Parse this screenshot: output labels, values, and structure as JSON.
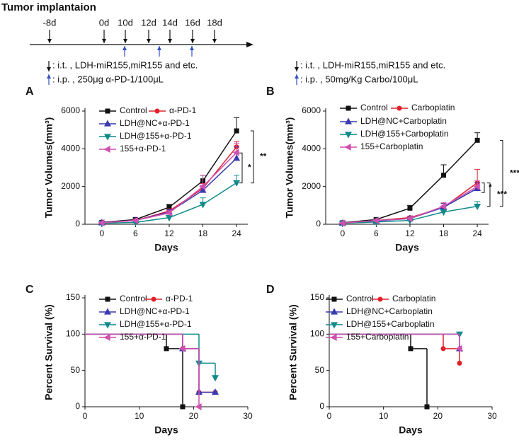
{
  "timeline": {
    "title": "Tumor implantaion",
    "labels": [
      "-8d",
      "0d",
      "10d",
      "12d",
      "14d",
      "16d",
      "18d"
    ],
    "legend_left": [
      ": i.t. , LDH-miR155,miR155 and etc.",
      ": i.p. , 250μg α-PD-1/100μL"
    ],
    "legend_right": [
      ": i.t. , LDH-miR155,miR155 and etc.",
      ": i.p. , 50mg/Kg Carbo/100μL"
    ]
  },
  "chart_data": [
    {
      "type": "line",
      "panel": "A",
      "xlabel": "Days",
      "ylabel": "Tumor Volumes(mm³)",
      "x": [
        0,
        6,
        12,
        18,
        24
      ],
      "xlim": [
        -3,
        26
      ],
      "xticks": [
        0,
        6,
        12,
        18,
        24
      ],
      "ylim": [
        0,
        6000
      ],
      "yticks": [
        0,
        2000,
        4000,
        6000
      ],
      "annotations": [
        "*",
        "**"
      ],
      "series": [
        {
          "name": "Control",
          "color": "#111111",
          "marker": "square",
          "values": [
            100,
            250,
            900,
            2300,
            4950
          ],
          "errors": [
            50,
            80,
            150,
            300,
            700
          ]
        },
        {
          "name": "α-PD-1",
          "color": "#e0202a",
          "marker": "circle",
          "values": [
            80,
            200,
            700,
            1900,
            4100
          ],
          "errors": [
            40,
            60,
            120,
            250,
            300
          ]
        },
        {
          "name": "LDH@NC+α-PD-1",
          "color": "#3a3ab0",
          "marker": "triangle-up",
          "values": [
            80,
            200,
            650,
            1800,
            3500
          ],
          "errors": [
            40,
            60,
            120,
            250,
            600
          ]
        },
        {
          "name": "LDH@155+α-PD-1",
          "color": "#108a8a",
          "marker": "triangle-down",
          "values": [
            50,
            100,
            350,
            1050,
            2200
          ],
          "errors": [
            30,
            40,
            100,
            350,
            400
          ]
        },
        {
          "name": "155+α-PD-1",
          "color": "#d04fb0",
          "marker": "triangle-left",
          "values": [
            80,
            200,
            600,
            2000,
            3800
          ],
          "errors": [
            40,
            60,
            120,
            600,
            500
          ]
        }
      ]
    },
    {
      "type": "line",
      "panel": "B",
      "xlabel": "Days",
      "ylabel": "Tumor Volumes(mm³)",
      "x": [
        0,
        6,
        12,
        18,
        24
      ],
      "xlim": [
        -3,
        26
      ],
      "xticks": [
        0,
        6,
        12,
        18,
        24
      ],
      "ylim": [
        0,
        6000
      ],
      "yticks": [
        0,
        2000,
        4000,
        6000
      ],
      "annotations": [
        "*",
        "***",
        "***"
      ],
      "series": [
        {
          "name": "Control",
          "color": "#111111",
          "marker": "square",
          "values": [
            80,
            250,
            850,
            2600,
            4450
          ],
          "errors": [
            50,
            80,
            150,
            550,
            400
          ]
        },
        {
          "name": "Carboplatin",
          "color": "#e0202a",
          "marker": "circle",
          "values": [
            60,
            200,
            350,
            900,
            2200
          ],
          "errors": [
            30,
            50,
            80,
            200,
            700
          ]
        },
        {
          "name": "LDH@NC+Carboplatin",
          "color": "#3a3ab0",
          "marker": "triangle-up",
          "values": [
            60,
            180,
            300,
            900,
            1900
          ],
          "errors": [
            30,
            50,
            80,
            200,
            300
          ]
        },
        {
          "name": "LDH@155+Carboplatin",
          "color": "#108a8a",
          "marker": "triangle-down",
          "values": [
            50,
            120,
            200,
            650,
            950
          ],
          "errors": [
            30,
            40,
            60,
            100,
            250
          ]
        },
        {
          "name": "155+Carboplatin",
          "color": "#d04fb0",
          "marker": "triangle-left",
          "values": [
            60,
            200,
            300,
            950,
            2000
          ],
          "errors": [
            30,
            50,
            80,
            200,
            300
          ]
        }
      ]
    },
    {
      "type": "step",
      "panel": "C",
      "xlabel": "Days",
      "ylabel": "Percent Survival (%)",
      "xlim": [
        0,
        30
      ],
      "xticks": [
        0,
        10,
        20,
        30
      ],
      "ylim": [
        0,
        150
      ],
      "yticks": [
        0,
        50,
        100,
        150
      ],
      "series": [
        {
          "name": "Control",
          "color": "#111111",
          "marker": "square",
          "x": [
            0,
            15,
            18
          ],
          "values": [
            100,
            80,
            0
          ]
        },
        {
          "name": "α-PD-1",
          "color": "#e0202a",
          "marker": "circle",
          "x": [
            0,
            18,
            21,
            24
          ],
          "values": [
            100,
            80,
            20,
            20
          ]
        },
        {
          "name": "LDH@NC+α-PD-1",
          "color": "#3a3ab0",
          "marker": "triangle-up",
          "x": [
            0,
            18,
            21,
            24
          ],
          "values": [
            100,
            80,
            20,
            20
          ]
        },
        {
          "name": "LDH@155+α-PD-1",
          "color": "#108a8a",
          "marker": "triangle-down",
          "x": [
            0,
            21,
            24
          ],
          "values": [
            100,
            60,
            40
          ]
        },
        {
          "name": "155+α-PD-1",
          "color": "#d04fb0",
          "marker": "triangle-left",
          "x": [
            0,
            18,
            21
          ],
          "values": [
            100,
            80,
            0
          ]
        }
      ]
    },
    {
      "type": "step",
      "panel": "D",
      "xlabel": "Days",
      "ylabel": "Percent Survival (%)",
      "xlim": [
        0,
        30
      ],
      "xticks": [
        0,
        10,
        20,
        30
      ],
      "ylim": [
        0,
        150
      ],
      "yticks": [
        0,
        50,
        100,
        150
      ],
      "series": [
        {
          "name": "Control",
          "color": "#111111",
          "marker": "square",
          "x": [
            0,
            15,
            18
          ],
          "values": [
            100,
            80,
            0
          ]
        },
        {
          "name": "Carboplatin",
          "color": "#e0202a",
          "marker": "circle",
          "x": [
            0,
            21,
            24
          ],
          "values": [
            100,
            80,
            60
          ]
        },
        {
          "name": "LDH@NC+Carboplatin",
          "color": "#3a3ab0",
          "marker": "triangle-up",
          "x": [
            0,
            24
          ],
          "values": [
            100,
            80
          ]
        },
        {
          "name": "LDH@155+Carboplatin",
          "color": "#108a8a",
          "marker": "triangle-down",
          "x": [
            0,
            24
          ],
          "values": [
            100,
            100
          ]
        },
        {
          "name": "155+Carboplatin",
          "color": "#d04fb0",
          "marker": "triangle-left",
          "x": [
            0,
            24
          ],
          "values": [
            100,
            80
          ]
        }
      ]
    }
  ]
}
